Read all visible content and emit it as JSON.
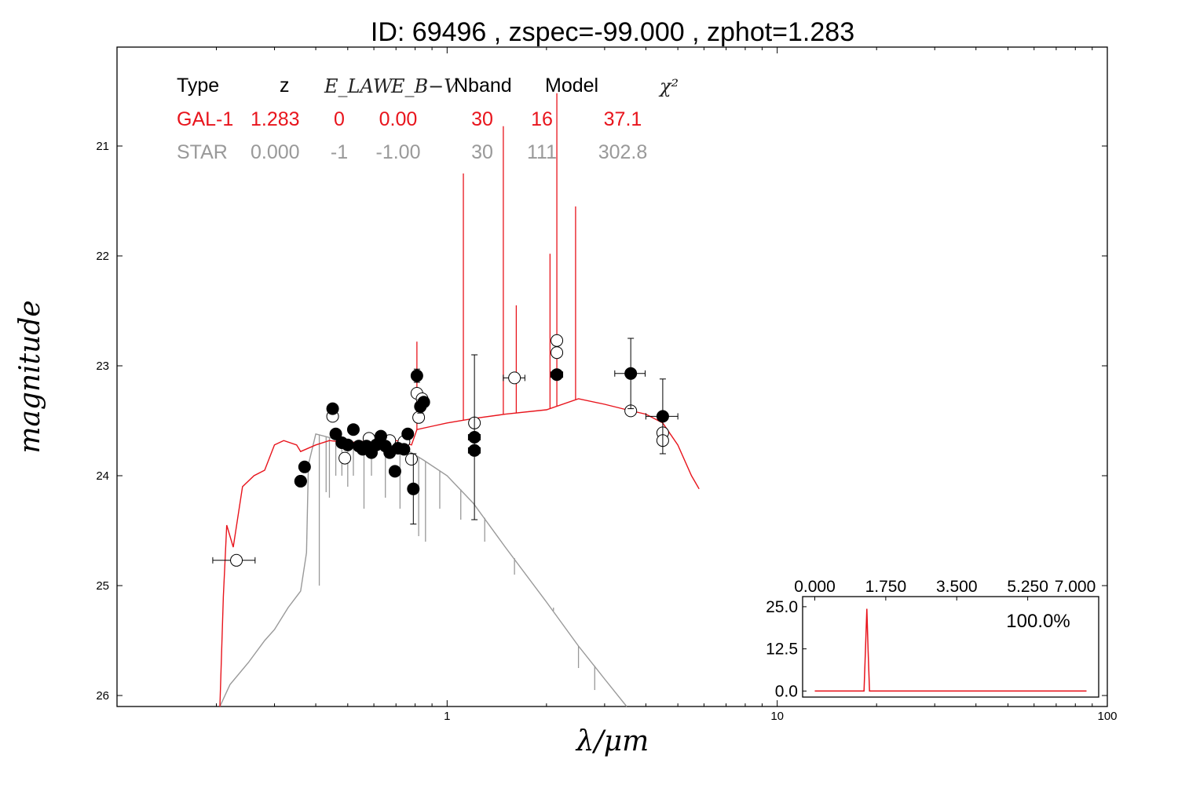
{
  "title": "ID:  69496 , zspec=-99.000 , zphot=1.283",
  "table": {
    "headers": [
      "Type",
      "z",
      "E_LAW",
      "E_B−V",
      "Nband",
      "Model",
      "χ²"
    ],
    "rows": [
      {
        "name": "row-gal",
        "color": "#e8141c",
        "cells": [
          "GAL-1",
          "1.283",
          "0",
          "0.00",
          "30",
          "16",
          "37.1"
        ]
      },
      {
        "name": "row-star",
        "color": "#999999",
        "cells": [
          "STAR",
          "0.000",
          "-1",
          "-1.00",
          "30",
          "111",
          "302.8"
        ]
      }
    ]
  },
  "chart_data": [
    {
      "type": "scatter",
      "title": "ID:  69496 , zspec=-99.000 , zphot=1.283",
      "xlabel": "λ/μm",
      "ylabel": "magnitude",
      "xscale": "log",
      "xlim": [
        0.1,
        100
      ],
      "ylim": [
        26.1,
        20.1
      ],
      "yinverted": true,
      "x_tick_labels": [
        "1",
        "10",
        "100"
      ],
      "y_tick_labels": [
        "21",
        "22",
        "23",
        "24",
        "25",
        "26"
      ],
      "grid": false,
      "observed_points": [
        {
          "x": 0.36,
          "y": 24.05,
          "xerr_lo": 0.355,
          "xerr_hi": 0.365
        },
        {
          "x": 0.37,
          "y": 23.92,
          "xerr_lo": 0.364,
          "xerr_hi": 0.376
        },
        {
          "x": 0.45,
          "y": 23.39
        },
        {
          "x": 0.46,
          "y": 23.62
        },
        {
          "x": 0.48,
          "y": 23.7
        },
        {
          "x": 0.5,
          "y": 23.72
        },
        {
          "x": 0.52,
          "y": 23.58
        },
        {
          "x": 0.54,
          "y": 23.73
        },
        {
          "x": 0.555,
          "y": 23.76
        },
        {
          "x": 0.57,
          "y": 23.73
        },
        {
          "x": 0.59,
          "y": 23.79
        },
        {
          "x": 0.61,
          "y": 23.72
        },
        {
          "x": 0.63,
          "y": 23.64
        },
        {
          "x": 0.65,
          "y": 23.73
        },
        {
          "x": 0.67,
          "y": 23.79
        },
        {
          "x": 0.695,
          "y": 23.96
        },
        {
          "x": 0.71,
          "y": 23.75
        },
        {
          "x": 0.74,
          "y": 23.76
        },
        {
          "x": 0.76,
          "y": 23.62
        },
        {
          "x": 0.79,
          "y": 24.12,
          "yerr": 0.32
        },
        {
          "x": 0.81,
          "y": 23.09,
          "yerr": 0.06
        },
        {
          "x": 0.83,
          "y": 23.37,
          "yerr": 0.06
        },
        {
          "x": 0.85,
          "y": 23.33
        },
        {
          "x": 1.21,
          "y": 23.77,
          "xerr_lo": 1.16,
          "xerr_hi": 1.26
        },
        {
          "x": 1.21,
          "y": 23.65,
          "xerr_lo": 1.16,
          "xerr_hi": 1.26,
          "yerr": 0.75
        },
        {
          "x": 2.15,
          "y": 23.08,
          "xerr_lo": 2.06,
          "xerr_hi": 2.24
        },
        {
          "x": 3.6,
          "y": 23.07,
          "xerr_lo": 3.22,
          "xerr_hi": 3.98,
          "yerr": 0.32
        },
        {
          "x": 4.5,
          "y": 23.46,
          "xerr_lo": 4.0,
          "xerr_hi": 5.0,
          "yerr": 0.34
        }
      ],
      "model_points": [
        {
          "x": 0.23,
          "y": 24.77,
          "xerr_lo": 0.195,
          "xerr_hi": 0.262
        },
        {
          "x": 0.36,
          "y": 24.05
        },
        {
          "x": 0.45,
          "y": 23.46
        },
        {
          "x": 0.49,
          "y": 23.84
        },
        {
          "x": 0.58,
          "y": 23.66
        },
        {
          "x": 0.67,
          "y": 23.68
        },
        {
          "x": 0.74,
          "y": 23.69
        },
        {
          "x": 0.78,
          "y": 23.85
        },
        {
          "x": 0.81,
          "y": 23.25
        },
        {
          "x": 0.82,
          "y": 23.47
        },
        {
          "x": 0.84,
          "y": 23.3
        },
        {
          "x": 1.21,
          "y": 23.52
        },
        {
          "x": 1.6,
          "y": 23.11,
          "xerr_lo": 1.48,
          "xerr_hi": 1.72
        },
        {
          "x": 2.15,
          "y": 22.77
        },
        {
          "x": 2.15,
          "y": 22.88
        },
        {
          "x": 3.6,
          "y": 23.41
        },
        {
          "x": 4.5,
          "y": 23.61
        },
        {
          "x": 4.5,
          "y": 23.68
        }
      ],
      "gal_model": {
        "name": "GAL-1",
        "color": "#e8141c",
        "continuum": [
          [
            0.205,
            26.1
          ],
          [
            0.21,
            25.1
          ],
          [
            0.215,
            24.45
          ],
          [
            0.225,
            24.65
          ],
          [
            0.24,
            24.1
          ],
          [
            0.26,
            24.0
          ],
          [
            0.28,
            23.95
          ],
          [
            0.3,
            23.72
          ],
          [
            0.32,
            23.68
          ],
          [
            0.35,
            23.72
          ],
          [
            0.36,
            23.78
          ],
          [
            0.4,
            23.72
          ],
          [
            0.44,
            23.68
          ],
          [
            0.5,
            23.7
          ],
          [
            0.6,
            23.68
          ],
          [
            0.7,
            23.68
          ],
          [
            0.78,
            23.72
          ],
          [
            0.81,
            23.58
          ],
          [
            0.9,
            23.55
          ],
          [
            1.0,
            23.52
          ],
          [
            1.2,
            23.48
          ],
          [
            1.5,
            23.44
          ],
          [
            2.0,
            23.4
          ],
          [
            2.5,
            23.3
          ],
          [
            3.0,
            23.35
          ],
          [
            3.5,
            23.4
          ],
          [
            4.0,
            23.44
          ],
          [
            4.5,
            23.52
          ],
          [
            5.0,
            23.72
          ],
          [
            5.5,
            24.0
          ],
          [
            5.8,
            24.12
          ]
        ],
        "emission_lines": [
          [
            0.81,
            22.78
          ],
          [
            1.12,
            21.25
          ],
          [
            1.48,
            20.82
          ],
          [
            1.62,
            22.45
          ],
          [
            2.05,
            21.98
          ],
          [
            2.15,
            20.52
          ],
          [
            2.45,
            21.55
          ]
        ]
      },
      "star_model": {
        "name": "STAR",
        "color": "#999999",
        "continuum": [
          [
            0.205,
            26.1
          ],
          [
            0.22,
            25.9
          ],
          [
            0.25,
            25.7
          ],
          [
            0.28,
            25.5
          ],
          [
            0.3,
            25.4
          ],
          [
            0.33,
            25.2
          ],
          [
            0.36,
            25.05
          ],
          [
            0.375,
            24.7
          ],
          [
            0.38,
            23.9
          ],
          [
            0.4,
            23.62
          ],
          [
            0.45,
            23.66
          ],
          [
            0.55,
            23.72
          ],
          [
            0.65,
            23.72
          ],
          [
            0.75,
            23.76
          ],
          [
            0.85,
            23.86
          ],
          [
            1.0,
            24.0
          ],
          [
            1.2,
            24.25
          ],
          [
            1.5,
            24.65
          ],
          [
            2.0,
            25.15
          ],
          [
            2.5,
            25.55
          ],
          [
            3.0,
            25.85
          ],
          [
            3.5,
            26.1
          ]
        ],
        "absorption_lines": [
          [
            0.41,
            25.0
          ],
          [
            0.43,
            24.15
          ],
          [
            0.44,
            24.2
          ],
          [
            0.46,
            24.0
          ],
          [
            0.48,
            24.0
          ],
          [
            0.5,
            24.1
          ],
          [
            0.52,
            24.0
          ],
          [
            0.56,
            24.3
          ],
          [
            0.59,
            24.0
          ],
          [
            0.65,
            24.2
          ],
          [
            0.72,
            24.3
          ],
          [
            0.82,
            24.55
          ],
          [
            0.86,
            24.6
          ],
          [
            0.95,
            24.3
          ],
          [
            1.1,
            24.4
          ],
          [
            1.3,
            24.6
          ],
          [
            1.6,
            24.9
          ],
          [
            2.1,
            25.2
          ],
          [
            2.5,
            25.75
          ],
          [
            2.8,
            25.95
          ]
        ]
      }
    },
    {
      "type": "line",
      "name": "pdz-inset",
      "x_tick_labels": [
        "0.000",
        "1.750",
        "3.500",
        "5.250",
        "7.000"
      ],
      "y_tick_labels": [
        "25.0",
        "12.5",
        "0.0"
      ],
      "xlim": [
        -0.3,
        7.0
      ],
      "ylim": [
        -1.8,
        28.0
      ],
      "annotation": "100.0%",
      "color": "#e8141c",
      "x": [
        0.0,
        1.215,
        1.25,
        1.283,
        1.315,
        1.35,
        6.7
      ],
      "y": [
        0.0,
        0.0,
        12.0,
        24.4,
        12.0,
        0.0,
        0.0
      ]
    }
  ]
}
